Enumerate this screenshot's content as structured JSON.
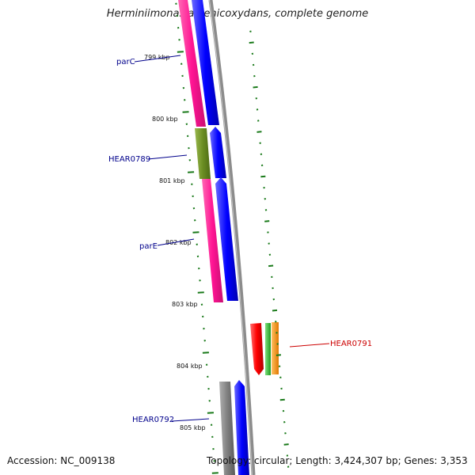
{
  "title": "Herminiimonas arsenicoxydans, complete genome",
  "footer": {
    "accession": "Accession: NC_009138",
    "summary": "Topology: circular; Length: 3,424,307 bp; Genes: 3,353"
  },
  "colors": {
    "pink": "#ff1493",
    "blue": "#0000ff",
    "olive": "#6b8e23",
    "gray": "#808080",
    "red": "#ff0000",
    "green": "#2db82d",
    "orange": "#ff8c00",
    "tick": "#1a7a1a",
    "label_blue": "#00008b",
    "label_red": "#cc0000"
  },
  "scale_ticks": [
    "799 kbp",
    "800 kbp",
    "801 kbp",
    "802 kbp",
    "803 kbp",
    "804 kbp",
    "805 kbp"
  ],
  "gene_labels": [
    {
      "name": "parC",
      "color": "label_blue"
    },
    {
      "name": "HEAR0789",
      "color": "label_blue"
    },
    {
      "name": "parE",
      "color": "label_blue"
    },
    {
      "name": "HEAR0791",
      "color": "label_red"
    },
    {
      "name": "HEAR0792",
      "color": "label_blue"
    }
  ]
}
